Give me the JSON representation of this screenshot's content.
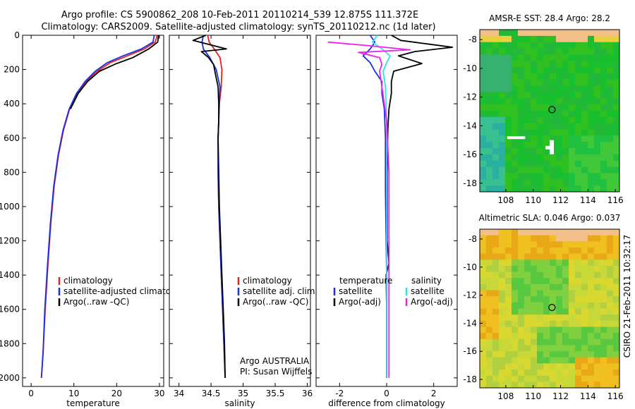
{
  "title_line1": "Argo profile: CS 5900862_208 10-Feb-2011 20110214_539 12.875S 111.372E",
  "title_line2": "Climatology: CARS2009. Satellite-adjusted climatology: synTS_20110212.nc (1d later)",
  "side_label": "CSIRO 21-Feb-2011 10:32:17",
  "colors": {
    "red": "#e8201a",
    "blue": "#1a2fe0",
    "black": "#000000",
    "magenta": "#f020f0",
    "cyan": "#30e0e8"
  },
  "chart_data": [
    {
      "type": "line",
      "name": "temperature",
      "xlabel": "temperature",
      "xlim": [
        -2,
        31
      ],
      "ylim": [
        2050,
        0
      ],
      "xticks": [
        0,
        10,
        20,
        30
      ],
      "yticks": [
        0,
        200,
        400,
        600,
        800,
        1000,
        1200,
        1400,
        1600,
        1800,
        2000
      ],
      "legend": [
        "climatology",
        "satellite-adjusted climatology",
        "Argo(..raw -QC)"
      ],
      "series": [
        {
          "name": "climatology",
          "color": "red",
          "points": [
            [
              29.5,
              0
            ],
            [
              29.0,
              40
            ],
            [
              26.5,
              80
            ],
            [
              22.5,
              120
            ],
            [
              18.5,
              160
            ],
            [
              15.5,
              210
            ],
            [
              12.8,
              270
            ],
            [
              10.8,
              340
            ],
            [
              9.0,
              430
            ],
            [
              7.6,
              550
            ],
            [
              6.4,
              700
            ],
            [
              5.4,
              880
            ],
            [
              4.6,
              1100
            ],
            [
              3.9,
              1350
            ],
            [
              3.3,
              1600
            ],
            [
              2.8,
              1850
            ],
            [
              2.4,
              2000
            ]
          ]
        },
        {
          "name": "satellite-adjusted climatology",
          "color": "blue",
          "points": [
            [
              28.8,
              0
            ],
            [
              28.5,
              40
            ],
            [
              25.8,
              80
            ],
            [
              21.5,
              120
            ],
            [
              17.8,
              160
            ],
            [
              15.0,
              210
            ],
            [
              12.6,
              270
            ],
            [
              10.6,
              340
            ],
            [
              8.9,
              430
            ],
            [
              7.5,
              550
            ],
            [
              6.3,
              700
            ],
            [
              5.3,
              880
            ],
            [
              4.5,
              1100
            ],
            [
              3.8,
              1350
            ],
            [
              3.2,
              1600
            ],
            [
              2.8,
              1850
            ],
            [
              2.4,
              2000
            ]
          ]
        },
        {
          "name": "Argo(..raw -QC)",
          "color": "black",
          "points": [
            [
              29.8,
              0
            ],
            [
              29.6,
              40
            ],
            [
              27.5,
              80
            ],
            [
              23.8,
              130
            ],
            [
              20.0,
              165
            ],
            [
              16.0,
              210
            ],
            [
              13.2,
              270
            ],
            [
              11.0,
              340
            ],
            [
              9.2,
              430
            ]
          ]
        }
      ]
    },
    {
      "type": "line",
      "name": "salinity",
      "xlabel": "salinity",
      "xlim": [
        33.85,
        36.05
      ],
      "ylim": [
        2050,
        0
      ],
      "xticks": [
        34,
        34.5,
        35,
        35.5,
        36
      ],
      "legend": [
        "climatology",
        "satellite adj. clim.",
        "Argo(..raw -QC)"
      ],
      "annotation": [
        "Argo AUSTRALIA",
        "PI: Susan Wijffels"
      ],
      "series": [
        {
          "name": "climatology",
          "color": "red",
          "points": [
            [
              34.45,
              0
            ],
            [
              34.47,
              40
            ],
            [
              34.55,
              80
            ],
            [
              34.64,
              130
            ],
            [
              34.67,
              200
            ],
            [
              34.66,
              300
            ],
            [
              34.63,
              400
            ],
            [
              34.62,
              500
            ],
            [
              34.61,
              600
            ],
            [
              34.61,
              800
            ],
            [
              34.62,
              1000
            ],
            [
              34.64,
              1200
            ],
            [
              34.66,
              1400
            ],
            [
              34.68,
              1600
            ],
            [
              34.7,
              1800
            ],
            [
              34.72,
              2000
            ]
          ]
        },
        {
          "name": "satellite adj. clim.",
          "color": "blue",
          "points": [
            [
              34.38,
              0
            ],
            [
              34.36,
              40
            ],
            [
              34.38,
              80
            ],
            [
              34.48,
              130
            ],
            [
              34.58,
              200
            ],
            [
              34.64,
              300
            ],
            [
              34.63,
              400
            ],
            [
              34.62,
              500
            ],
            [
              34.61,
              600
            ],
            [
              34.61,
              800
            ],
            [
              34.62,
              1000
            ],
            [
              34.64,
              1200
            ],
            [
              34.66,
              1400
            ],
            [
              34.68,
              1600
            ],
            [
              34.7,
              1800
            ],
            [
              34.72,
              2000
            ]
          ]
        },
        {
          "name": "Argo(..raw -QC)",
          "color": "black",
          "points": [
            [
              34.42,
              0
            ],
            [
              34.22,
              30
            ],
            [
              34.74,
              80
            ],
            [
              34.35,
              95
            ],
            [
              34.46,
              130
            ],
            [
              34.54,
              170
            ],
            [
              34.57,
              230
            ],
            [
              34.61,
              300
            ],
            [
              34.62,
              400
            ],
            [
              34.62,
              500
            ],
            [
              34.61,
              600
            ],
            [
              34.62,
              800
            ],
            [
              34.63,
              1000
            ],
            [
              34.65,
              1200
            ],
            [
              34.67,
              1400
            ],
            [
              34.69,
              1600
            ],
            [
              34.71,
              1800
            ],
            [
              34.72,
              2000
            ]
          ]
        }
      ]
    },
    {
      "type": "line",
      "name": "difference from climatology",
      "xlabel": "difference from climatology",
      "xlim": [
        -3.0,
        3.0
      ],
      "ylim": [
        2050,
        0
      ],
      "xticks": [
        -2,
        0,
        2
      ],
      "legend_temperature_header": "temperature",
      "legend_salinity_header": "salinity",
      "legend_temperature": [
        "satellite",
        "Argo(-adj)"
      ],
      "legend_salinity": [
        "satellite",
        "Argo(-adj)"
      ],
      "series": [
        {
          "name": "temperature satellite",
          "color": "blue",
          "points": [
            [
              -0.7,
              0
            ],
            [
              -0.5,
              40
            ],
            [
              -0.7,
              80
            ],
            [
              -1.0,
              120
            ],
            [
              -0.7,
              160
            ],
            [
              -0.5,
              210
            ],
            [
              -0.2,
              270
            ],
            [
              -0.2,
              340
            ],
            [
              -0.1,
              430
            ],
            [
              -0.05,
              600
            ],
            [
              -0.05,
              900
            ],
            [
              0,
              1400
            ],
            [
              0,
              2000
            ]
          ]
        },
        {
          "name": "temperature Argo(-adj)",
          "color": "black",
          "points": [
            [
              0.2,
              0
            ],
            [
              0.6,
              30
            ],
            [
              2.8,
              70
            ],
            [
              1.2,
              95
            ],
            [
              0.5,
              120
            ],
            [
              1.5,
              165
            ],
            [
              0.3,
              210
            ],
            [
              0.2,
              270
            ],
            [
              0.2,
              340
            ],
            [
              0.1,
              430
            ],
            [
              0.05,
              550
            ],
            [
              0.02,
              800
            ],
            [
              0.02,
              1200
            ],
            [
              0.1,
              1330
            ],
            [
              -0.02,
              1400
            ],
            [
              0,
              1600
            ],
            [
              0,
              1800
            ],
            [
              0,
              2000
            ]
          ]
        },
        {
          "name": "salinity satellite",
          "color": "cyan",
          "points": [
            [
              -0.4,
              0
            ],
            [
              -0.6,
              40
            ],
            [
              -0.2,
              80
            ],
            [
              0.15,
              120
            ],
            [
              0.0,
              160
            ],
            [
              -0.15,
              210
            ],
            [
              -0.05,
              300
            ],
            [
              0.0,
              500
            ],
            [
              0.0,
              800
            ],
            [
              0.0,
              1200
            ],
            [
              0.0,
              1600
            ],
            [
              0.0,
              2000
            ]
          ]
        },
        {
          "name": "salinity Argo(-adj)",
          "color": "magenta",
          "points": [
            [
              -2.5,
              40
            ],
            [
              -0.8,
              60
            ],
            [
              1.0,
              85
            ],
            [
              -1.2,
              100
            ],
            [
              -0.3,
              130
            ],
            [
              -0.2,
              170
            ],
            [
              -0.3,
              210
            ],
            [
              -0.2,
              300
            ],
            [
              0.0,
              500
            ],
            [
              0.1,
              800
            ],
            [
              0.1,
              1200
            ],
            [
              0.1,
              1600
            ],
            [
              0.1,
              2000
            ]
          ]
        }
      ]
    },
    {
      "type": "heatmap",
      "name": "sst map",
      "title": "AMSR-E SST: 28.4 Argo: 28.2",
      "xlim": [
        106.1,
        116.3
      ],
      "ylim": [
        -18.6,
        -7.3
      ],
      "xticks": [
        108,
        110,
        112,
        114,
        116
      ],
      "yticks": [
        -8,
        -10,
        -12,
        -14,
        -16,
        -18
      ],
      "marker": [
        111.372,
        -12.875
      ]
    },
    {
      "type": "heatmap",
      "name": "sla map",
      "title": "Altimetric SLA: 0.046 Argo: 0.037",
      "xlim": [
        106.1,
        116.3
      ],
      "ylim": [
        -18.6,
        -7.3
      ],
      "xticks": [
        108,
        110,
        112,
        114,
        116
      ],
      "yticks": [
        -8,
        -10,
        -12,
        -14,
        -16,
        -18
      ],
      "marker": [
        111.372,
        -12.875
      ]
    }
  ]
}
